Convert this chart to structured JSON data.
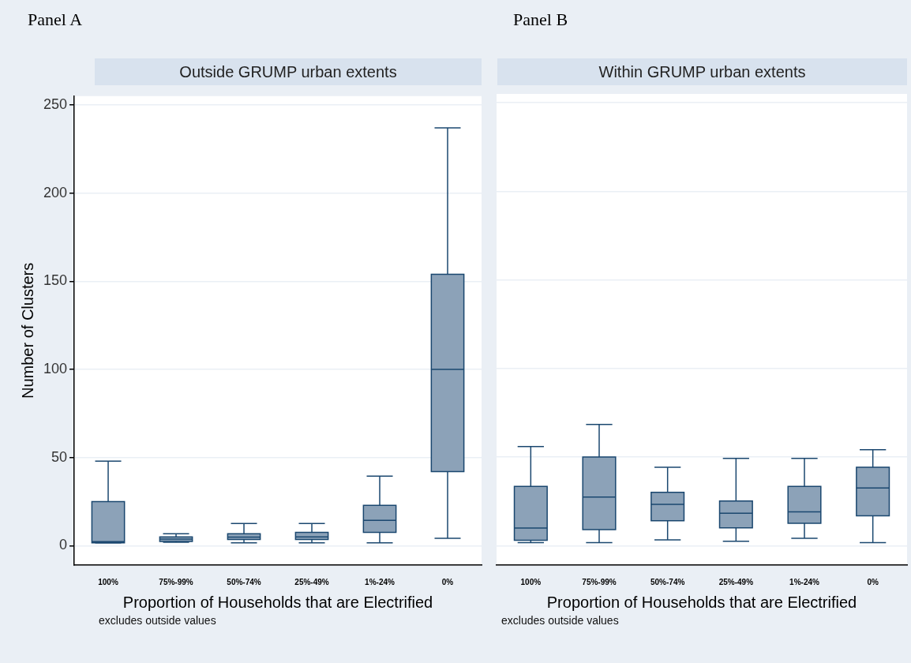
{
  "chart_data": [
    {
      "type": "box",
      "title": "Panel A",
      "subtitle": "Outside GRUMP urban extents",
      "categories": [
        "100%",
        "75%-99%",
        "50%-74%",
        "25%-49%",
        "1%-24%",
        "0%"
      ],
      "color": "#8ca2b8",
      "boxes": [
        {
          "low": 1.7,
          "q1": 1.7,
          "median": 2.3,
          "q3": 25,
          "high": 48
        },
        {
          "low": 2,
          "q1": 2.4,
          "median": 3.8,
          "q3": 5,
          "high": 6.8
        },
        {
          "low": 1.7,
          "q1": 3.5,
          "median": 4.9,
          "q3": 6.8,
          "high": 12.6
        },
        {
          "low": 1.7,
          "q1": 3.5,
          "median": 5,
          "q3": 7.6,
          "high": 12.6
        },
        {
          "low": 1.7,
          "q1": 7.6,
          "median": 14.4,
          "q3": 22.9,
          "high": 39.5
        },
        {
          "low": 4.2,
          "q1": 42,
          "median": 100,
          "q3": 154,
          "high": 237
        }
      ],
      "ylim": [
        -11,
        255
      ],
      "yticks": [
        0,
        50,
        100,
        150,
        200,
        250
      ],
      "grid": "y",
      "xlabel": "Proportion of Households that are Electrified",
      "ylabel": "Number of Clusters",
      "annotations": [
        "excludes outside values"
      ]
    },
    {
      "type": "box",
      "title": "Panel B",
      "subtitle": "Within GRUMP urban extents",
      "categories": [
        "100%",
        "75%-99%",
        "50%-74%",
        "25%-49%",
        "1%-24%",
        "0%"
      ],
      "color": "#8ca2b8",
      "boxes": [
        {
          "low": 1.7,
          "q1": 3,
          "median": 9.9,
          "q3": 33.5,
          "high": 56
        },
        {
          "low": 1.7,
          "q1": 9.1,
          "median": 27.4,
          "q3": 50,
          "high": 68.4
        },
        {
          "low": 3.3,
          "q1": 14.1,
          "median": 23.3,
          "q3": 30.1,
          "high": 44.2
        },
        {
          "low": 2.5,
          "q1": 10,
          "median": 18.3,
          "q3": 25.2,
          "high": 49.3
        },
        {
          "low": 4.2,
          "q1": 12.6,
          "median": 19.1,
          "q3": 33.5,
          "high": 49.3
        },
        {
          "low": 1.7,
          "q1": 16.8,
          "median": 32.6,
          "q3": 44.2,
          "high": 54.2
        }
      ],
      "ylim": [
        -11,
        255
      ],
      "yticks": [
        0,
        50,
        100,
        150,
        200,
        250
      ],
      "grid": "y",
      "tick_labels": "x",
      "xlabel": "Proportion of Households that are Electrified",
      "annotations": [
        "excludes outside values"
      ]
    }
  ]
}
